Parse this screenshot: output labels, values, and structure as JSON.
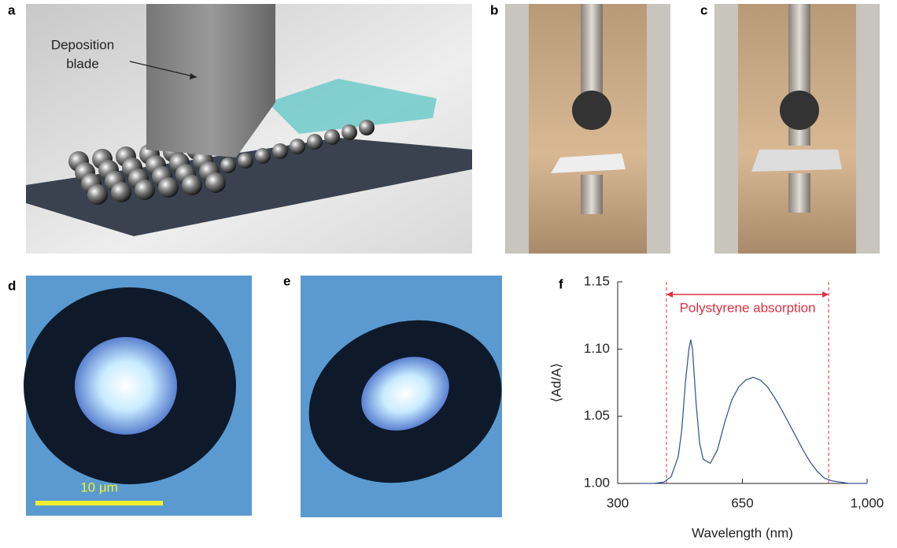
{
  "panels": {
    "a": {
      "label": "a",
      "annotation": "Deposition blade"
    },
    "b": {
      "label": "b"
    },
    "c": {
      "label": "c"
    },
    "d": {
      "label": "d",
      "scale_bar": "10 μm"
    },
    "e": {
      "label": "e"
    },
    "f": {
      "label": "f"
    }
  },
  "chart_data": {
    "type": "line",
    "x_label": "Wavelength (nm)",
    "y_label": "⟨Ad/A⟩",
    "x": [
      360,
      400,
      430,
      450,
      470,
      480,
      490,
      500,
      505,
      510,
      520,
      530,
      540,
      560,
      580,
      600,
      620,
      640,
      660,
      680,
      700,
      720,
      740,
      760,
      780,
      800,
      820,
      840,
      860,
      880,
      900,
      950,
      1000
    ],
    "series": [
      {
        "color": "#3a5a9a",
        "values": [
          1.0,
          1.0,
          1.001,
          1.005,
          1.02,
          1.04,
          1.075,
          1.1,
          1.107,
          1.1,
          1.06,
          1.03,
          1.018,
          1.015,
          1.025,
          1.045,
          1.062,
          1.072,
          1.077,
          1.079,
          1.077,
          1.072,
          1.064,
          1.055,
          1.045,
          1.035,
          1.025,
          1.016,
          1.009,
          1.004,
          1.002,
          1.0,
          1.0
        ]
      }
    ],
    "xlim": [
      300,
      1000
    ],
    "xticks": [
      300,
      650,
      {
        "value": 1000,
        "label": "1,000"
      }
    ],
    "ylim": [
      1.0,
      1.15
    ],
    "yticks": [
      {
        "value": 1.0,
        "label": "1.00"
      },
      {
        "value": 1.05,
        "label": "1.05"
      },
      {
        "value": 1.1,
        "label": "1.10"
      },
      {
        "value": 1.15,
        "label": "1.15"
      }
    ],
    "annotation": {
      "text": "Polystyrene absorption",
      "span": [
        437,
        892
      ],
      "color": "#e03040"
    }
  }
}
